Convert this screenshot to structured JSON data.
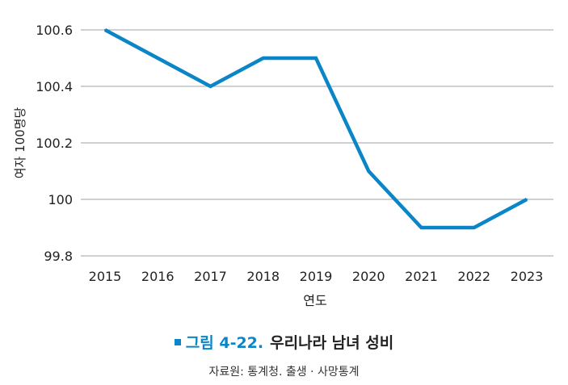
{
  "chart_data": {
    "type": "line",
    "x": [
      "2015",
      "2016",
      "2017",
      "2018",
      "2019",
      "2020",
      "2021",
      "2022",
      "2023"
    ],
    "series": [
      {
        "values": [
          100.6,
          100.5,
          100.4,
          100.5,
          100.5,
          100.1,
          99.9,
          99.9,
          100.0
        ]
      }
    ],
    "xlabel": "연도",
    "ylabel": "여자 100명당",
    "ylim": [
      99.8,
      100.6
    ],
    "yticks": [
      99.8,
      100,
      100.2,
      100.4,
      100.6
    ],
    "ytick_labels": [
      "99.8",
      "100",
      "100.2",
      "100.4",
      "100.6"
    ],
    "grid": "horizontal",
    "line_color": "#0a86c8"
  },
  "caption": {
    "number": "그림 4-22.",
    "title": "우리나라 남녀 성비",
    "accent_color": "#0a86c8"
  },
  "source": "자료원: 통계청. 출생 · 사망통계"
}
